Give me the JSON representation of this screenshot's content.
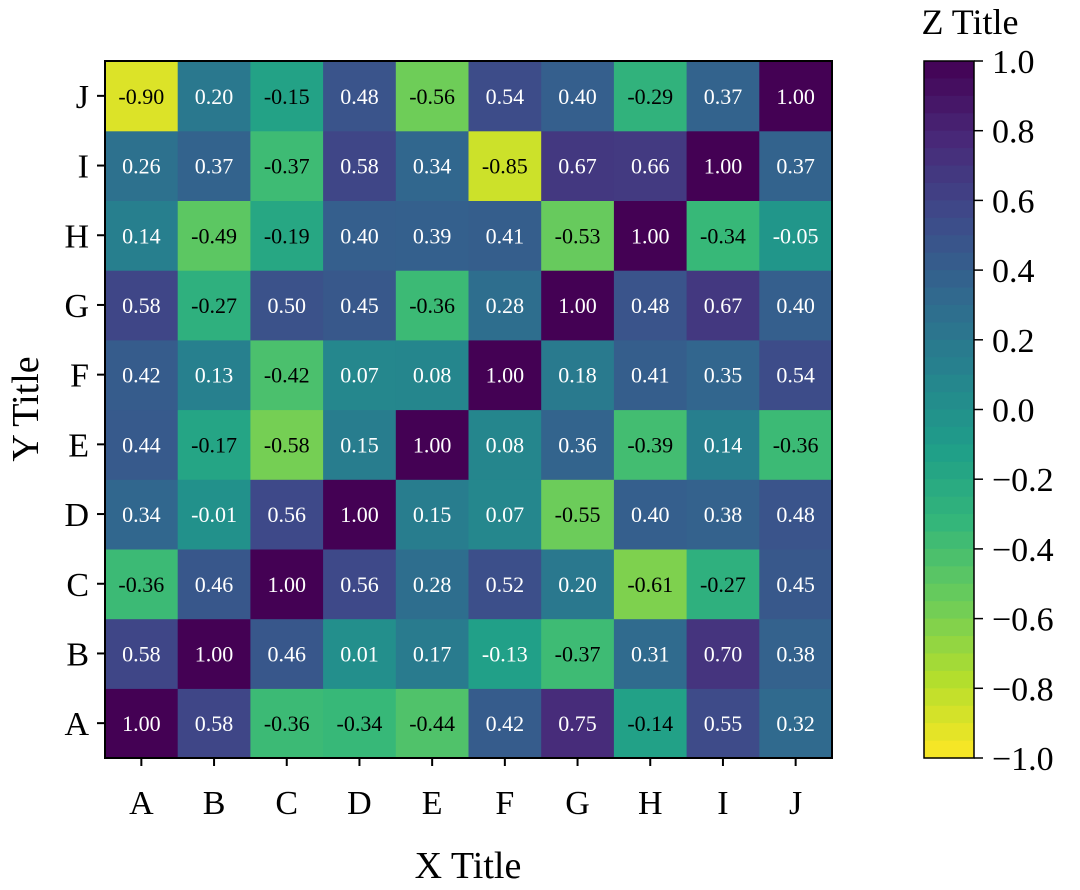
{
  "chart_data": {
    "type": "heatmap",
    "x_categories": [
      "A",
      "B",
      "C",
      "D",
      "E",
      "F",
      "G",
      "H",
      "I",
      "J"
    ],
    "y_categories": [
      "A",
      "B",
      "C",
      "D",
      "E",
      "F",
      "G",
      "H",
      "I",
      "J"
    ],
    "xlabel": "X Title",
    "ylabel": "Y Title",
    "colorbar_title": "Z Title",
    "colormap": "viridis_r",
    "zlim": [
      -1.0,
      1.0
    ],
    "colorbar_ticks": [
      "1.0",
      "0.8",
      "0.6",
      "0.4",
      "0.2",
      "0.0",
      "−0.2",
      "−0.4",
      "−0.6",
      "−0.8",
      "−1.0"
    ],
    "colorbar_tick_values": [
      1.0,
      0.8,
      0.6,
      0.4,
      0.2,
      0.0,
      -0.2,
      -0.4,
      -0.6,
      -0.8,
      -1.0
    ],
    "rows": [
      {
        "y": "A",
        "values": [
          1.0,
          0.58,
          -0.36,
          -0.34,
          -0.44,
          0.42,
          0.75,
          -0.14,
          0.55,
          0.32
        ],
        "labels": [
          "1.00",
          "0.58",
          "-0.36",
          "-0.34",
          "-0.44",
          "0.42",
          "0.75",
          "-0.14",
          "0.55",
          "0.32"
        ]
      },
      {
        "y": "B",
        "values": [
          0.58,
          1.0,
          0.46,
          0.01,
          0.17,
          -0.13,
          -0.37,
          0.31,
          0.7,
          0.38
        ],
        "labels": [
          "0.58",
          "1.00",
          "0.46",
          "0.01",
          "0.17",
          "-0.13",
          "-0.37",
          "0.31",
          "0.70",
          "0.38"
        ]
      },
      {
        "y": "C",
        "values": [
          -0.36,
          0.46,
          1.0,
          0.56,
          0.28,
          0.52,
          0.2,
          -0.61,
          -0.27,
          0.45
        ],
        "labels": [
          "-0.36",
          "0.46",
          "1.00",
          "0.56",
          "0.28",
          "0.52",
          "0.20",
          "-0.61",
          "-0.27",
          "0.45"
        ]
      },
      {
        "y": "D",
        "values": [
          0.34,
          -0.01,
          0.56,
          1.0,
          0.15,
          0.07,
          -0.55,
          0.4,
          0.38,
          0.48
        ],
        "labels": [
          "0.34",
          "-0.01",
          "0.56",
          "1.00",
          "0.15",
          "0.07",
          "-0.55",
          "0.40",
          "0.38",
          "0.48"
        ]
      },
      {
        "y": "E",
        "values": [
          0.44,
          -0.17,
          -0.58,
          0.15,
          1.0,
          0.08,
          0.36,
          -0.39,
          0.14,
          -0.36
        ],
        "labels": [
          "0.44",
          "-0.17",
          "-0.58",
          "0.15",
          "1.00",
          "0.08",
          "0.36",
          "-0.39",
          "0.14",
          "-0.36"
        ]
      },
      {
        "y": "F",
        "values": [
          0.42,
          0.13,
          -0.42,
          0.07,
          0.08,
          1.0,
          0.18,
          0.41,
          0.35,
          0.54
        ],
        "labels": [
          "0.42",
          "0.13",
          "-0.42",
          "0.07",
          "0.08",
          "1.00",
          "0.18",
          "0.41",
          "0.35",
          "0.54"
        ]
      },
      {
        "y": "G",
        "values": [
          0.58,
          -0.27,
          0.5,
          0.45,
          -0.36,
          0.28,
          1.0,
          0.48,
          0.67,
          0.4
        ],
        "labels": [
          "0.58",
          "-0.27",
          "0.50",
          "0.45",
          "-0.36",
          "0.28",
          "1.00",
          "0.48",
          "0.67",
          "0.40"
        ]
      },
      {
        "y": "H",
        "values": [
          0.14,
          -0.49,
          -0.19,
          0.4,
          0.39,
          0.41,
          -0.53,
          1.0,
          -0.34,
          -0.05
        ],
        "labels": [
          "0.14",
          "-0.49",
          "-0.19",
          "0.40",
          "0.39",
          "0.41",
          "-0.53",
          "1.00",
          "-0.34",
          "-0.05"
        ]
      },
      {
        "y": "I",
        "values": [
          0.26,
          0.37,
          -0.37,
          0.58,
          0.34,
          -0.85,
          0.67,
          0.66,
          1.0,
          0.37
        ],
        "labels": [
          "0.26",
          "0.37",
          "-0.37",
          "0.58",
          "0.34",
          "-0.85",
          "0.67",
          "0.66",
          "1.00",
          "0.37"
        ]
      },
      {
        "y": "J",
        "values": [
          -0.9,
          0.2,
          -0.15,
          0.48,
          -0.56,
          0.54,
          0.4,
          -0.29,
          0.37,
          1.0
        ],
        "labels": [
          "-0.90",
          "0.20",
          "-0.15",
          "0.48",
          "-0.56",
          "0.54",
          "0.40",
          "-0.29",
          "0.37",
          "1.00"
        ]
      }
    ]
  }
}
